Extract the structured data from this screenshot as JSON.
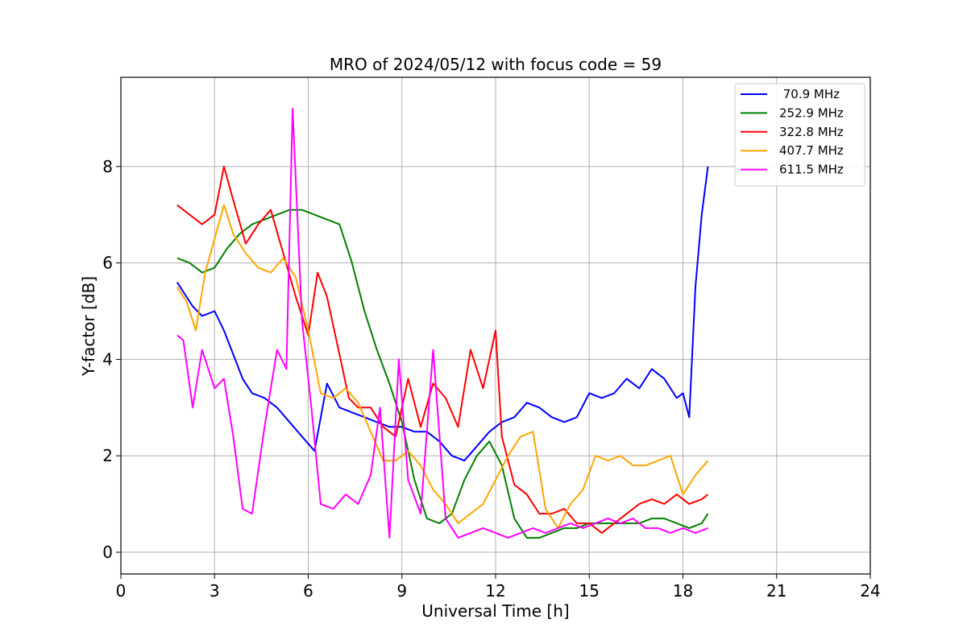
{
  "chart_data": {
    "type": "line",
    "title": "MRO of 2024/05/12 with focus code = 59",
    "xlabel": "Universal Time [h]",
    "ylabel": "Y-factor [dB]",
    "xlim": [
      0,
      24
    ],
    "ylim": [
      -0.45,
      9.85
    ],
    "xticks": [
      0,
      3,
      6,
      9,
      12,
      15,
      18,
      21,
      24
    ],
    "xtick_labels": [
      "0",
      "3",
      "6",
      "9",
      "12",
      "15",
      "18",
      "21",
      "24"
    ],
    "yticks": [
      0,
      2,
      4,
      6,
      8
    ],
    "ytick_labels": [
      "0",
      "2",
      "4",
      "6",
      "8"
    ],
    "grid": true,
    "legend_position": "top-right",
    "series": [
      {
        "name": " 70.9 MHz",
        "color": "#0000ff",
        "x": [
          1.8,
          2.0,
          2.3,
          2.6,
          3.0,
          3.3,
          3.6,
          3.9,
          4.2,
          4.6,
          5.0,
          5.4,
          5.8,
          6.2,
          6.6,
          7.0,
          7.4,
          7.8,
          8.2,
          8.6,
          9.0,
          9.4,
          9.8,
          10.2,
          10.6,
          11.0,
          11.4,
          11.8,
          12.2,
          12.6,
          13.0,
          13.4,
          13.8,
          14.2,
          14.6,
          15.0,
          15.4,
          15.8,
          16.2,
          16.6,
          17.0,
          17.4,
          17.8,
          18.0,
          18.2,
          18.4,
          18.6,
          18.8
        ],
        "y": [
          5.6,
          5.4,
          5.1,
          4.9,
          5.0,
          4.6,
          4.1,
          3.6,
          3.3,
          3.2,
          3.0,
          2.7,
          2.4,
          2.1,
          3.5,
          3.0,
          2.9,
          2.8,
          2.7,
          2.6,
          2.6,
          2.5,
          2.5,
          2.3,
          2.0,
          1.9,
          2.2,
          2.5,
          2.7,
          2.8,
          3.1,
          3.0,
          2.8,
          2.7,
          2.8,
          3.3,
          3.2,
          3.3,
          3.6,
          3.4,
          3.8,
          3.6,
          3.2,
          3.3,
          2.8,
          5.5,
          7.0,
          8.0
        ]
      },
      {
        "name": "252.9 MHz",
        "color": "#008000",
        "x": [
          1.8,
          2.2,
          2.6,
          3.0,
          3.4,
          3.8,
          4.2,
          4.6,
          5.0,
          5.4,
          5.8,
          6.2,
          6.6,
          7.0,
          7.4,
          7.8,
          8.2,
          8.6,
          9.0,
          9.4,
          9.8,
          10.2,
          10.6,
          11.0,
          11.4,
          11.8,
          12.2,
          12.6,
          13.0,
          13.4,
          13.8,
          14.2,
          14.6,
          15.0,
          15.4,
          15.8,
          16.2,
          16.6,
          17.0,
          17.4,
          17.8,
          18.2,
          18.6,
          18.8
        ],
        "y": [
          6.1,
          6.0,
          5.8,
          5.9,
          6.3,
          6.6,
          6.8,
          6.9,
          7.0,
          7.1,
          7.1,
          7.0,
          6.9,
          6.8,
          6.0,
          5.0,
          4.2,
          3.5,
          2.7,
          1.5,
          0.7,
          0.6,
          0.8,
          1.5,
          2.0,
          2.3,
          1.8,
          0.7,
          0.3,
          0.3,
          0.4,
          0.5,
          0.5,
          0.6,
          0.6,
          0.6,
          0.6,
          0.6,
          0.7,
          0.7,
          0.6,
          0.5,
          0.6,
          0.8
        ]
      },
      {
        "name": "322.8 MHz",
        "color": "#ff0000",
        "x": [
          1.8,
          2.2,
          2.6,
          3.0,
          3.3,
          3.6,
          4.0,
          4.4,
          4.8,
          5.2,
          5.6,
          6.0,
          6.3,
          6.6,
          7.0,
          7.3,
          7.6,
          8.0,
          8.4,
          8.8,
          9.2,
          9.6,
          10.0,
          10.4,
          10.8,
          11.2,
          11.6,
          12.0,
          12.2,
          12.6,
          13.0,
          13.4,
          13.8,
          14.2,
          14.6,
          15.0,
          15.4,
          15.8,
          16.2,
          16.6,
          17.0,
          17.4,
          17.8,
          18.2,
          18.6,
          18.8
        ],
        "y": [
          7.2,
          7.0,
          6.8,
          7.0,
          8.0,
          7.3,
          6.4,
          6.8,
          7.1,
          6.2,
          5.3,
          4.5,
          5.8,
          5.3,
          4.1,
          3.2,
          3.0,
          3.0,
          2.6,
          2.4,
          3.6,
          2.6,
          3.5,
          3.2,
          2.6,
          4.2,
          3.4,
          4.6,
          2.4,
          1.4,
          1.2,
          0.8,
          0.8,
          0.9,
          0.6,
          0.6,
          0.4,
          0.6,
          0.8,
          1.0,
          1.1,
          1.0,
          1.2,
          1.0,
          1.1,
          1.2
        ]
      },
      {
        "name": "407.7 MHz",
        "color": "#ffa500",
        "x": [
          1.8,
          2.1,
          2.4,
          2.7,
          3.0,
          3.3,
          3.6,
          4.0,
          4.4,
          4.8,
          5.2,
          5.6,
          6.0,
          6.4,
          6.8,
          7.2,
          7.6,
          8.0,
          8.4,
          8.8,
          9.2,
          9.6,
          10.0,
          10.4,
          10.8,
          11.2,
          11.6,
          12.0,
          12.4,
          12.8,
          13.2,
          13.6,
          14.0,
          14.4,
          14.8,
          15.2,
          15.6,
          16.0,
          16.4,
          16.8,
          17.2,
          17.6,
          18.0,
          18.4,
          18.8
        ],
        "y": [
          5.5,
          5.2,
          4.6,
          5.8,
          6.5,
          7.2,
          6.6,
          6.2,
          5.9,
          5.8,
          6.1,
          5.7,
          4.6,
          3.3,
          3.2,
          3.4,
          3.1,
          2.5,
          1.9,
          1.9,
          2.1,
          1.8,
          1.3,
          1.0,
          0.6,
          0.8,
          1.0,
          1.5,
          2.0,
          2.4,
          2.5,
          0.9,
          0.5,
          1.0,
          1.3,
          2.0,
          1.9,
          2.0,
          1.8,
          1.8,
          1.9,
          2.0,
          1.2,
          1.6,
          1.9
        ]
      },
      {
        "name": "611.5 MHz",
        "color": "#ff00ff",
        "x": [
          1.8,
          2.0,
          2.3,
          2.6,
          3.0,
          3.3,
          3.6,
          3.9,
          4.2,
          4.6,
          5.0,
          5.3,
          5.5,
          5.8,
          6.1,
          6.4,
          6.8,
          7.2,
          7.6,
          8.0,
          8.3,
          8.6,
          8.9,
          9.2,
          9.6,
          10.0,
          10.4,
          10.8,
          11.2,
          11.6,
          12.0,
          12.4,
          12.8,
          13.2,
          13.6,
          14.0,
          14.4,
          14.8,
          15.2,
          15.6,
          16.0,
          16.4,
          16.8,
          17.2,
          17.6,
          18.0,
          18.4,
          18.8
        ],
        "y": [
          4.5,
          4.4,
          3.0,
          4.2,
          3.4,
          3.6,
          2.4,
          0.9,
          0.8,
          2.6,
          4.2,
          3.8,
          9.2,
          4.8,
          3.0,
          1.0,
          0.9,
          1.2,
          1.0,
          1.6,
          3.0,
          0.3,
          4.0,
          1.5,
          0.8,
          4.2,
          0.7,
          0.3,
          0.4,
          0.5,
          0.4,
          0.3,
          0.4,
          0.5,
          0.4,
          0.5,
          0.6,
          0.5,
          0.6,
          0.7,
          0.6,
          0.7,
          0.5,
          0.5,
          0.4,
          0.5,
          0.4,
          0.5
        ]
      }
    ]
  }
}
